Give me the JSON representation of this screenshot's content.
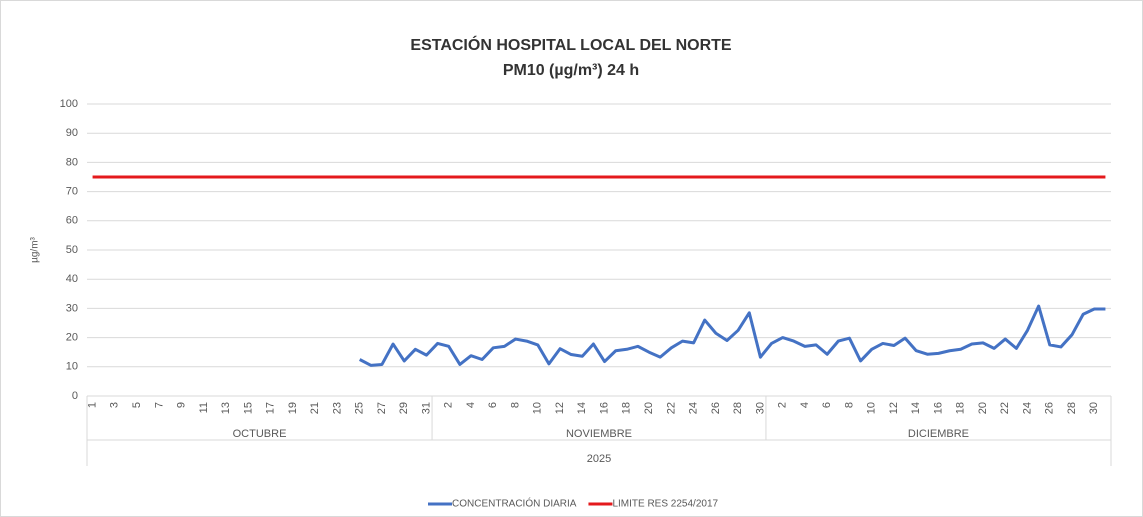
{
  "chart_data": {
    "type": "line",
    "title": "ESTACIÓN HOSPITAL LOCAL DEL NORTE",
    "subtitle": "PM10 (µg/m³) 24 h",
    "y_label": "µg/m³",
    "categories": [
      "1",
      null,
      "3",
      null,
      "5",
      null,
      "7",
      null,
      "9",
      null,
      "11",
      null,
      "13",
      null,
      "15",
      null,
      "17",
      null,
      "19",
      null,
      "21",
      null,
      "23",
      null,
      "25",
      null,
      "27",
      null,
      "29",
      null,
      "31",
      null,
      "2",
      null,
      "4",
      null,
      "6",
      null,
      "8",
      null,
      "10",
      null,
      "12",
      null,
      "14",
      null,
      "16",
      null,
      "18",
      null,
      "20",
      null,
      "22",
      null,
      "24",
      null,
      "26",
      null,
      "28",
      null,
      "30",
      null,
      "2",
      null,
      "4",
      null,
      "6",
      null,
      "8",
      null,
      "10",
      null,
      "12",
      null,
      "14",
      null,
      "16",
      null,
      "18",
      null,
      "20",
      null,
      "22",
      null,
      "24",
      null,
      "26",
      null,
      "28",
      null,
      "30",
      null
    ],
    "category_groups": [
      {
        "label": "OCTUBRE",
        "span": 31
      },
      {
        "label": "NOVIEMBRE",
        "span": 30
      },
      {
        "label": "DICIEMBRE",
        "span": 31
      }
    ],
    "year": "2025",
    "series": [
      {
        "name": "CONCENTRACIÓN DIARIA",
        "color": "#4472c4",
        "values": [
          null,
          null,
          null,
          null,
          null,
          null,
          null,
          null,
          null,
          null,
          null,
          null,
          null,
          null,
          null,
          null,
          null,
          null,
          null,
          null,
          null,
          null,
          null,
          null,
          12.5,
          10.5,
          10.8,
          17.8,
          12,
          16,
          14,
          18,
          17,
          10.8,
          13.8,
          12.5,
          16.5,
          17,
          19.5,
          18.8,
          17.5,
          11,
          16.2,
          14.2,
          13.6,
          17.8,
          11.8,
          15.5,
          16,
          17,
          15,
          13.3,
          16.5,
          18.8,
          18.2,
          26,
          21.5,
          19,
          22.5,
          28.5,
          13.3,
          18,
          20,
          18.8,
          17,
          17.5,
          14.3,
          18.8,
          19.8,
          12,
          16,
          18,
          17.3,
          19.8,
          15.5,
          14.3,
          14.6,
          15.5,
          16,
          17.8,
          18.2,
          16.3,
          19.5,
          16.3,
          22.5,
          30.8,
          17.5,
          16.8,
          21,
          28,
          29.8,
          29.8
        ]
      },
      {
        "name": "LIMITE RES 2254/2017",
        "color": "#e41a1c",
        "values": [
          75,
          75,
          75,
          75,
          75,
          75,
          75,
          75,
          75,
          75,
          75,
          75,
          75,
          75,
          75,
          75,
          75,
          75,
          75,
          75,
          75,
          75,
          75,
          75,
          75,
          75,
          75,
          75,
          75,
          75,
          75,
          75,
          75,
          75,
          75,
          75,
          75,
          75,
          75,
          75,
          75,
          75,
          75,
          75,
          75,
          75,
          75,
          75,
          75,
          75,
          75,
          75,
          75,
          75,
          75,
          75,
          75,
          75,
          75,
          75,
          75,
          75,
          75,
          75,
          75,
          75,
          75,
          75,
          75,
          75,
          75,
          75,
          75,
          75,
          75,
          75,
          75,
          75,
          75,
          75,
          75,
          75,
          75,
          75,
          75,
          75,
          75,
          75,
          75,
          75,
          75,
          75
        ]
      }
    ],
    "ylim": [
      0,
      100
    ],
    "yticks": [
      0,
      10,
      20,
      30,
      40,
      50,
      60,
      70,
      80,
      90,
      100
    ],
    "grid": true,
    "legend": "bottom"
  }
}
